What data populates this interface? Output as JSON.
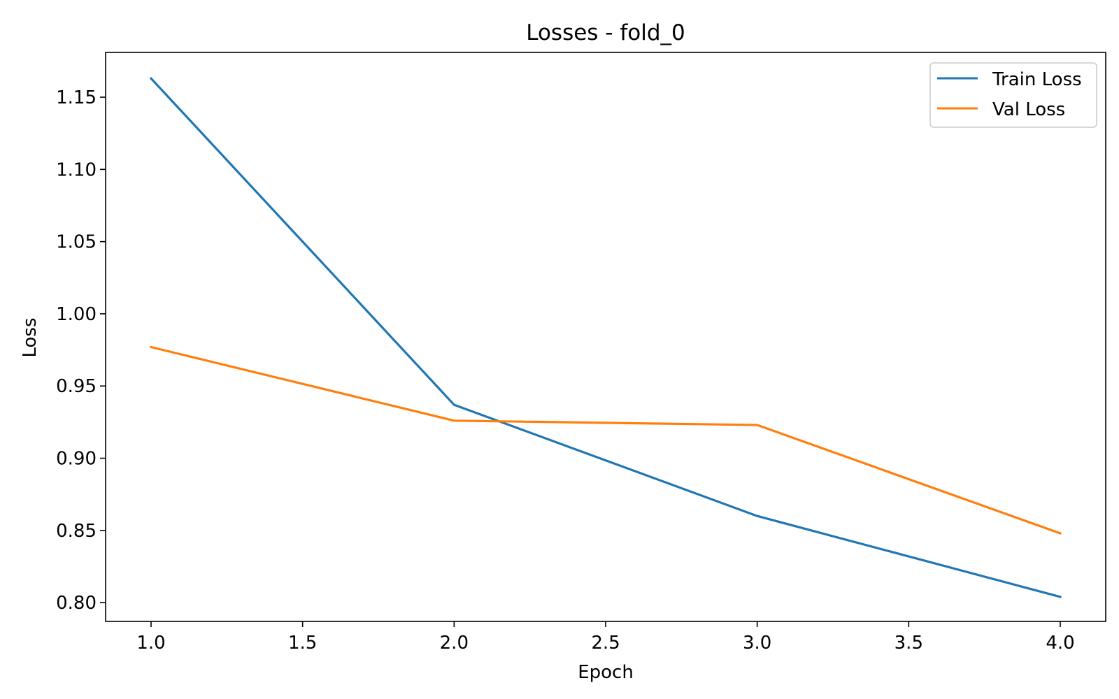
{
  "chart_data": {
    "type": "line",
    "title": "Losses - fold_0",
    "xlabel": "Epoch",
    "ylabel": "Loss",
    "x": [
      1,
      2,
      3,
      4
    ],
    "xticks": [
      "1.0",
      "1.5",
      "2.0",
      "2.5",
      "3.0",
      "3.5",
      "4.0"
    ],
    "yticks": [
      "0.80",
      "0.85",
      "0.90",
      "0.95",
      "1.00",
      "1.05",
      "1.10",
      "1.15"
    ],
    "xlim": [
      0.85,
      4.15
    ],
    "ylim": [
      0.787,
      1.181
    ],
    "grid": false,
    "legend_position": "top-right",
    "series": [
      {
        "name": "Train Loss",
        "color": "#1f77b4",
        "values": [
          1.163,
          0.937,
          0.86,
          0.804
        ]
      },
      {
        "name": "Val Loss",
        "color": "#ff7f0e",
        "values": [
          0.977,
          0.926,
          0.923,
          0.848
        ]
      }
    ]
  }
}
